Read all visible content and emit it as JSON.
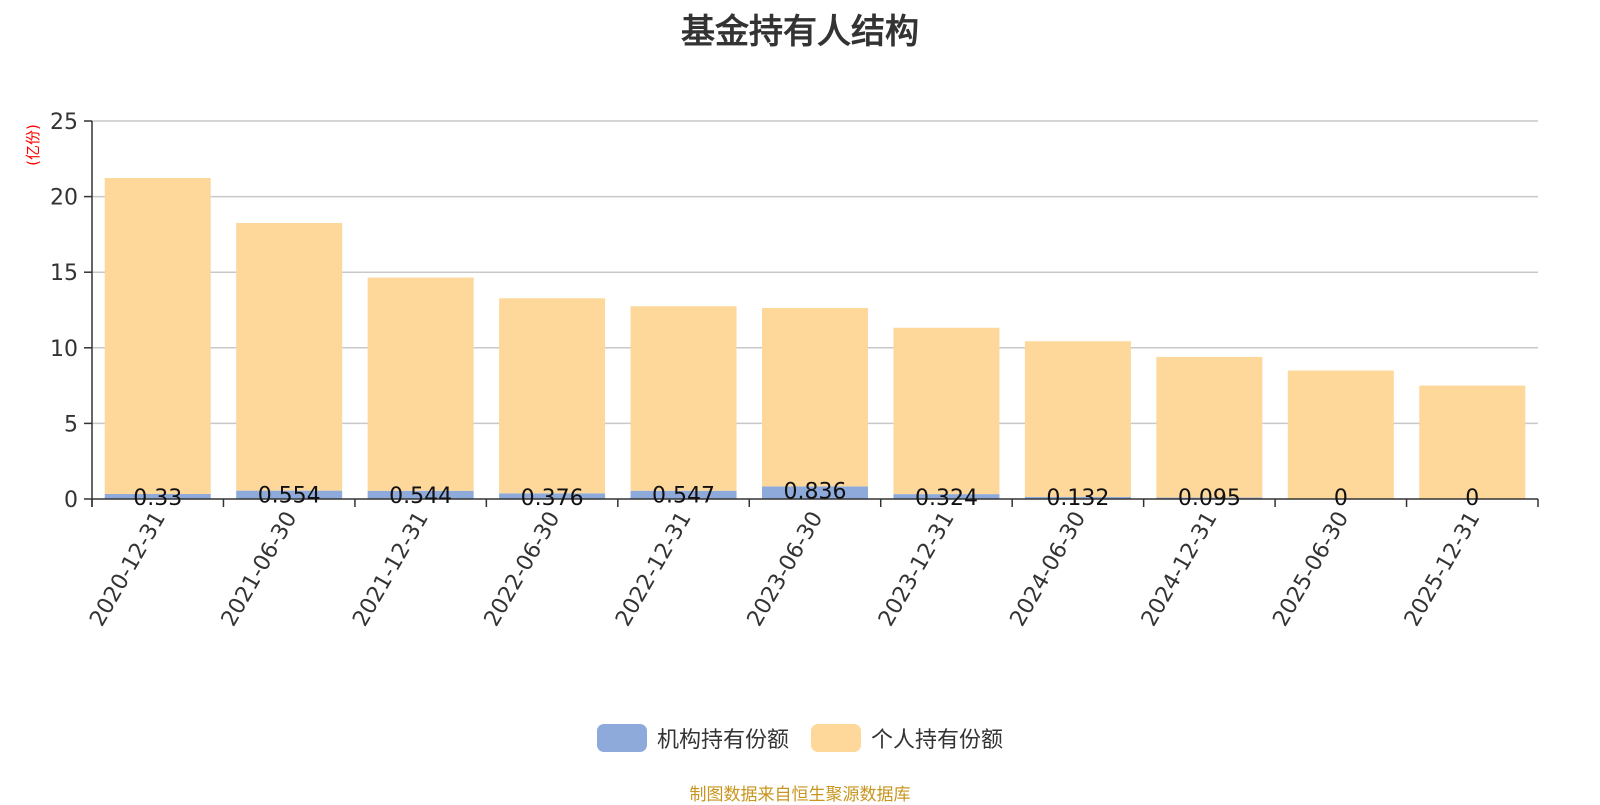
{
  "chart_data": {
    "type": "bar",
    "stacked": true,
    "title": "基金持有人结构",
    "ylabel": "(亿份)",
    "xlabel": "",
    "ylim": [
      0,
      25
    ],
    "yticks": [
      0,
      5,
      10,
      15,
      20,
      25
    ],
    "grid": true,
    "legend_position": "bottom",
    "categories": [
      "2020-12-31",
      "2021-06-30",
      "2021-12-31",
      "2022-06-30",
      "2022-12-31",
      "2023-06-30",
      "2023-12-31",
      "2024-06-30",
      "2024-12-31",
      "2025-06-30",
      "2025-12-31"
    ],
    "series": [
      {
        "name": "机构持有份额",
        "color": "#8eaadb",
        "values": [
          0.33,
          0.554,
          0.544,
          0.376,
          0.547,
          0.836,
          0.324,
          0.132,
          0.095,
          0,
          0
        ],
        "labels": [
          "0.33",
          "0.554",
          "0.544",
          "0.376",
          "0.547",
          "0.836",
          "0.324",
          "0.132",
          "0.095",
          "0",
          "0"
        ]
      },
      {
        "name": "个人持有份额",
        "color": "#fdd89a",
        "values": [
          20.9,
          17.7,
          14.1,
          12.9,
          12.2,
          11.8,
          11.0,
          10.3,
          9.3,
          8.5,
          7.5
        ]
      }
    ]
  },
  "source_note": "制图数据来自恒生聚源数据库",
  "colors": {
    "title": "#333333",
    "ylabel": "#ff0000",
    "source": "#c8961e",
    "grid": "#c8c8c8",
    "axis": "#333333"
  }
}
